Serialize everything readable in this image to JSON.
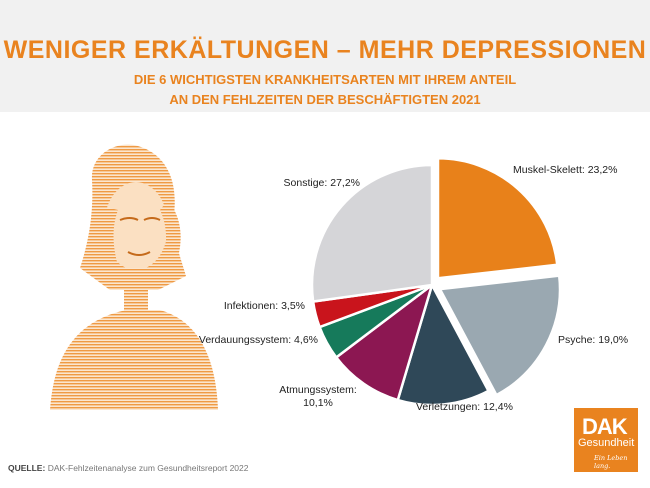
{
  "header": {
    "title": "WENIGER ERKÄLTUNGEN  – MEHR DEPRESSIONEN",
    "subtitle_line1": "DIE 6 WICHTIGSTEN KRANKHEITSARTEN MIT IHREM ANTEIL",
    "subtitle_line2": "AN DEN FEHLZEITEN DER BESCHÄFTIGTEN 2021"
  },
  "colors": {
    "accent": "#e9831f",
    "header_band": "#f1f1f1"
  },
  "chart_data": {
    "type": "pie",
    "slices": [
      {
        "label": "Muskel-Skelett: 23,2%",
        "value": 23.2,
        "color": "#e8811a",
        "exploded": true
      },
      {
        "label": "Psyche: 19,0%",
        "value": 19.0,
        "color": "#9aa8b1",
        "exploded": true
      },
      {
        "label": "Verletzungen: 12,4%",
        "value": 12.4,
        "color": "#2f4858",
        "exploded": false
      },
      {
        "label": "Atmungssystem: 10,1%",
        "value": 10.1,
        "color": "#8c1752",
        "exploded": false
      },
      {
        "label": "Verdauungssystem: 4,6%",
        "value": 4.6,
        "color": "#167a5b",
        "exploded": false
      },
      {
        "label": "Infektionen: 3,5%",
        "value": 3.5,
        "color": "#c9141c",
        "exploded": false
      },
      {
        "label": "Sonstige: 27,2%",
        "value": 27.2,
        "color": "#d5d5d8",
        "exploded": false
      }
    ]
  },
  "footer": {
    "source_label": "QUELLE:",
    "source_text": "DAK-Fehlzeitenanalyse zum Gesundheitsreport 2022"
  },
  "logo": {
    "brand": "DAK",
    "name": "Gesundheit",
    "tagline": "Ein Leben lang."
  }
}
